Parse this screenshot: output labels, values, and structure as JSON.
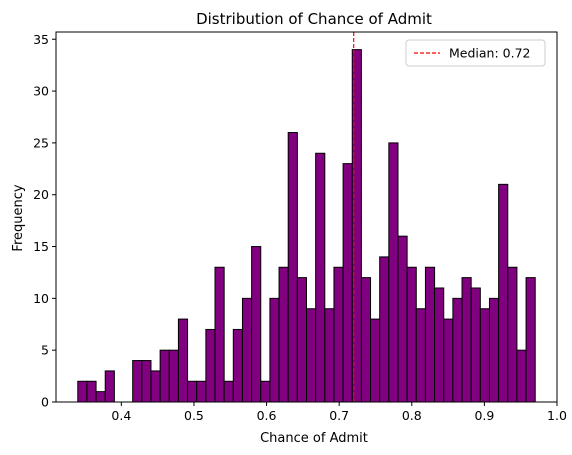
{
  "chart_data": {
    "type": "bar",
    "title": "Distribution of Chance of Admit",
    "xlabel": "Chance of Admit",
    "ylabel": "Frequency",
    "xlim": [
      0.31,
      1.0
    ],
    "ylim": [
      0,
      35.7
    ],
    "xticks": [
      0.4,
      0.5,
      0.6,
      0.7,
      0.8,
      0.9,
      1.0
    ],
    "xtick_labels": [
      "0.4",
      "0.5",
      "0.6",
      "0.7",
      "0.8",
      "0.9",
      "1.0"
    ],
    "yticks": [
      0,
      5,
      10,
      15,
      20,
      25,
      30,
      35
    ],
    "ytick_labels": [
      "0",
      "5",
      "10",
      "15",
      "20",
      "25",
      "30",
      "35"
    ],
    "bin_start": 0.34,
    "bin_width": 0.0126,
    "values": [
      2,
      2,
      1,
      3,
      0,
      0,
      4,
      4,
      3,
      5,
      5,
      8,
      2,
      2,
      7,
      13,
      2,
      7,
      10,
      15,
      2,
      10,
      13,
      26,
      12,
      9,
      24,
      9,
      13,
      23,
      34,
      12,
      8,
      14,
      25,
      16,
      13,
      9,
      13,
      11,
      8,
      10,
      12,
      11,
      9,
      10,
      21,
      13,
      5,
      12
    ],
    "bar_color": "#800080",
    "edge_color": "#000000",
    "median": 0.72,
    "median_color": "#ff0000",
    "legend": {
      "label": "Median: 0.72",
      "placement": "top-right"
    },
    "grid": false
  }
}
